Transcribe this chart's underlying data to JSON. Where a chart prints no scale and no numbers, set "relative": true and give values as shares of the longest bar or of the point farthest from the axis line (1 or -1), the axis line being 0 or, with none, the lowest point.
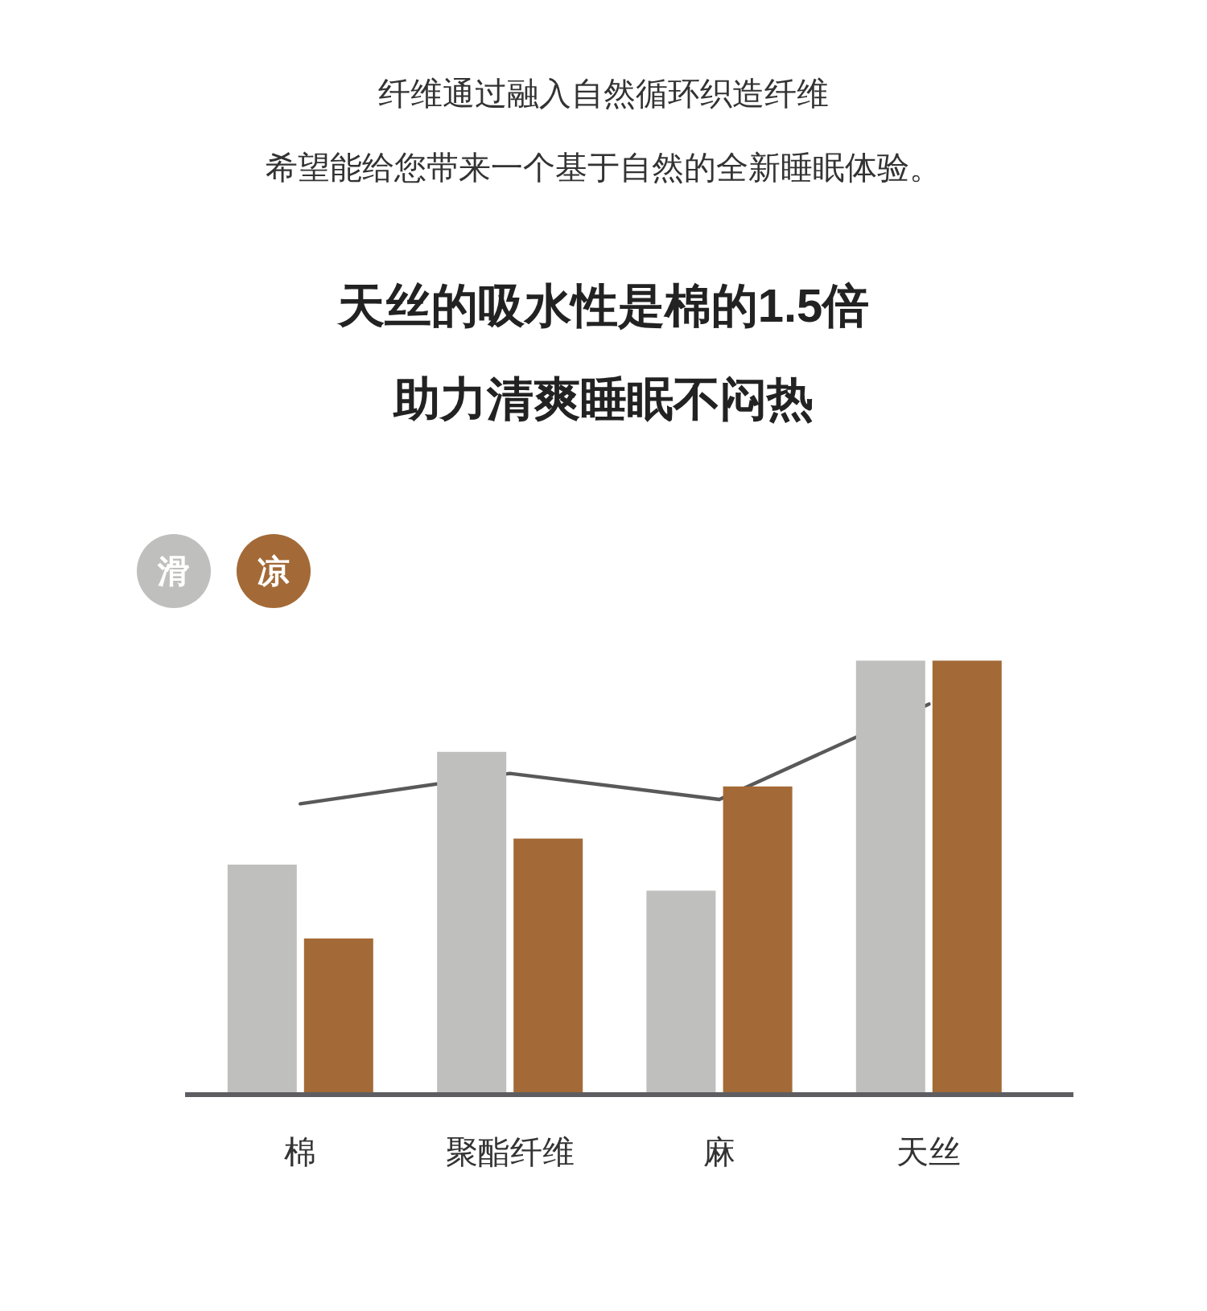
{
  "chart_data": {
    "type": "bar",
    "title": "天丝的吸水性是棉的1.5倍",
    "subtitle": "助力清爽睡眠不闷热",
    "annotations": [
      "纤维通过融入自然循环织造纤维",
      "希望能给您带来一个基于自然的全新睡眠体验。"
    ],
    "categories": [
      "棉",
      "聚酯纤维",
      "麻",
      "天丝"
    ],
    "relative": true,
    "legend": "top left",
    "series": [
      {
        "name": "滑",
        "color": "#bfbfbd",
        "values": [
          0.53,
          0.79,
          0.47,
          1
        ]
      },
      {
        "name": "凉",
        "color": "#a36a37",
        "values": [
          0.36,
          0.59,
          0.71,
          1
        ]
      },
      {
        "type": "line",
        "color": "#595959",
        "values": [
          0.67,
          0.74,
          0.68,
          0.9
        ]
      }
    ]
  }
}
